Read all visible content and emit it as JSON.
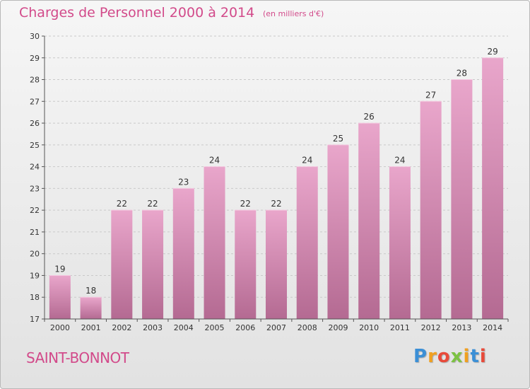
{
  "header": {
    "title": "Charges de Personnel 2000 à 2014",
    "subtitle": "(en milliers d'€)"
  },
  "footer": {
    "commune": "SAINT-BONNOT",
    "logo_letters": [
      "P",
      "r",
      "o",
      "x",
      "i",
      "t",
      "i"
    ],
    "logo_colors": [
      "#3b8fd6",
      "#f0a020",
      "#e84a3a",
      "#7cc242",
      "#f0a020",
      "#3b8fd6",
      "#e84a3a"
    ]
  },
  "colors": {
    "bar_top": "#e9a6cb",
    "bar_bottom": "#b46a92",
    "title": "#d24a8a"
  },
  "chart_data": {
    "type": "bar",
    "categories": [
      "2000",
      "2001",
      "2002",
      "2003",
      "2004",
      "2005",
      "2006",
      "2007",
      "2008",
      "2009",
      "2010",
      "2011",
      "2012",
      "2013",
      "2014"
    ],
    "values": [
      19,
      18,
      22,
      22,
      23,
      24,
      22,
      22,
      24,
      25,
      26,
      24,
      27,
      28,
      29
    ],
    "ylim": [
      17,
      30
    ],
    "yticks": [
      17,
      18,
      19,
      20,
      21,
      22,
      23,
      24,
      25,
      26,
      27,
      28,
      29,
      30
    ],
    "grid": true
  }
}
